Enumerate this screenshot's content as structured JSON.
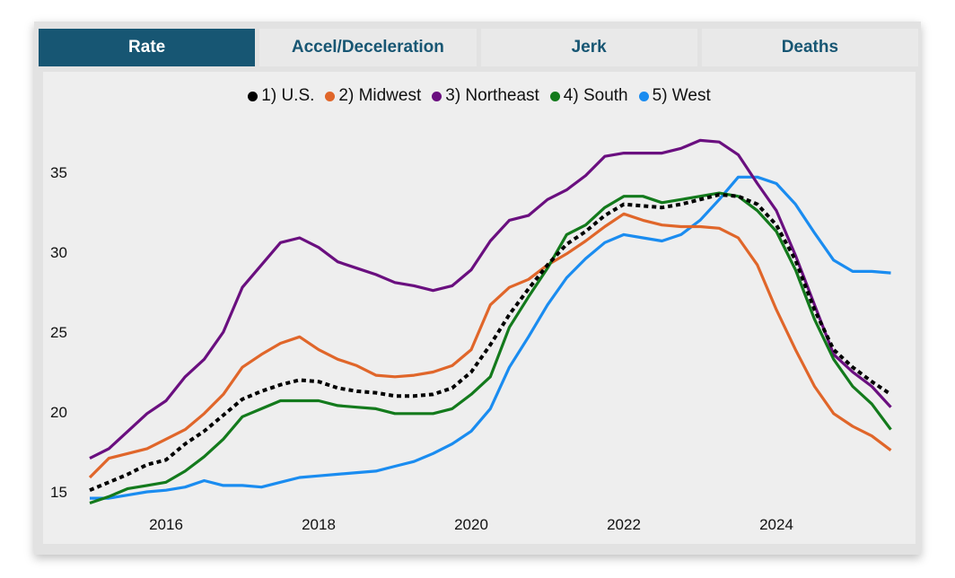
{
  "tabs": [
    {
      "label": "Rate",
      "active": true
    },
    {
      "label": "Accel/Deceleration"
    },
    {
      "label": "Jerk"
    },
    {
      "label": "Deaths"
    }
  ],
  "chart_data": {
    "type": "line",
    "title": "",
    "xlabel": "",
    "ylabel": "",
    "xlim": [
      2015,
      2025.7
    ],
    "ylim": [
      13.8,
      38
    ],
    "xticks": [
      2016,
      2018,
      2020,
      2022,
      2024
    ],
    "yticks": [
      15,
      20,
      25,
      30,
      35
    ],
    "grid": false,
    "legend_position": "top",
    "x": [
      2015,
      2015.25,
      2015.5,
      2015.75,
      2016,
      2016.25,
      2016.5,
      2016.75,
      2017,
      2017.25,
      2017.5,
      2017.75,
      2018,
      2018.25,
      2018.5,
      2018.75,
      2019,
      2019.25,
      2019.5,
      2019.75,
      2020,
      2020.25,
      2020.5,
      2020.75,
      2021,
      2021.25,
      2021.5,
      2021.75,
      2022,
      2022.25,
      2022.5,
      2022.75,
      2023,
      2023.25,
      2023.5,
      2023.75,
      2024,
      2024.25,
      2024.5,
      2024.75,
      2025,
      2025.25,
      2025.5
    ],
    "series": [
      {
        "name": "1) U.S.",
        "color": "#000000",
        "dashed": true,
        "values": [
          15.1,
          15.6,
          16.1,
          16.7,
          17.0,
          18.0,
          18.8,
          19.8,
          20.8,
          21.3,
          21.7,
          22.0,
          21.9,
          21.5,
          21.3,
          21.2,
          21.0,
          21.0,
          21.1,
          21.5,
          22.5,
          24.2,
          26.1,
          27.7,
          29.2,
          30.5,
          31.3,
          32.3,
          33.0,
          32.9,
          32.8,
          33.0,
          33.3,
          33.6,
          33.5,
          33.0,
          31.7,
          29.5,
          26.4,
          23.9,
          22.8,
          21.9,
          21.1
        ]
      },
      {
        "name": "2) Midwest",
        "color": "#e0662a",
        "values": [
          15.9,
          17.1,
          17.4,
          17.7,
          18.3,
          18.9,
          19.9,
          21.1,
          22.8,
          23.6,
          24.3,
          24.7,
          23.9,
          23.3,
          22.9,
          22.3,
          22.2,
          22.3,
          22.5,
          22.9,
          23.9,
          26.7,
          27.8,
          28.3,
          29.2,
          29.9,
          30.7,
          31.6,
          32.4,
          32.0,
          31.7,
          31.6,
          31.6,
          31.5,
          30.9,
          29.2,
          26.4,
          23.9,
          21.6,
          19.9,
          19.1,
          18.5,
          17.6
        ]
      },
      {
        "name": "3) Northeast",
        "color": "#6a0f7f",
        "values": [
          17.1,
          17.7,
          18.8,
          19.9,
          20.7,
          22.2,
          23.3,
          25.0,
          27.8,
          29.2,
          30.6,
          30.9,
          30.3,
          29.4,
          29.0,
          28.6,
          28.1,
          27.9,
          27.6,
          27.9,
          28.9,
          30.7,
          32.0,
          32.3,
          33.3,
          33.9,
          34.8,
          36.0,
          36.2,
          36.2,
          36.2,
          36.5,
          37.0,
          36.9,
          36.1,
          34.3,
          32.6,
          29.8,
          26.7,
          23.6,
          22.5,
          21.6,
          20.3
        ]
      },
      {
        "name": "4) South",
        "color": "#137a1c",
        "values": [
          14.3,
          14.7,
          15.2,
          15.4,
          15.6,
          16.3,
          17.2,
          18.3,
          19.7,
          20.2,
          20.7,
          20.7,
          20.7,
          20.4,
          20.3,
          20.2,
          19.9,
          19.9,
          19.9,
          20.2,
          21.1,
          22.2,
          25.3,
          27.2,
          29.0,
          31.1,
          31.7,
          32.8,
          33.5,
          33.5,
          33.1,
          33.3,
          33.5,
          33.7,
          33.5,
          32.6,
          31.3,
          28.9,
          25.8,
          23.3,
          21.6,
          20.5,
          18.9
        ]
      },
      {
        "name": "5) West",
        "color": "#1a8cf0",
        "values": [
          14.6,
          14.6,
          14.8,
          15.0,
          15.1,
          15.3,
          15.7,
          15.4,
          15.4,
          15.3,
          15.6,
          15.9,
          16.0,
          16.1,
          16.2,
          16.3,
          16.6,
          16.9,
          17.4,
          18.0,
          18.8,
          20.2,
          22.8,
          24.7,
          26.7,
          28.4,
          29.6,
          30.6,
          31.1,
          30.9,
          30.7,
          31.1,
          32.0,
          33.3,
          34.7,
          34.7,
          34.3,
          33.0,
          31.2,
          29.5,
          28.8,
          28.8,
          28.7
        ]
      }
    ]
  }
}
